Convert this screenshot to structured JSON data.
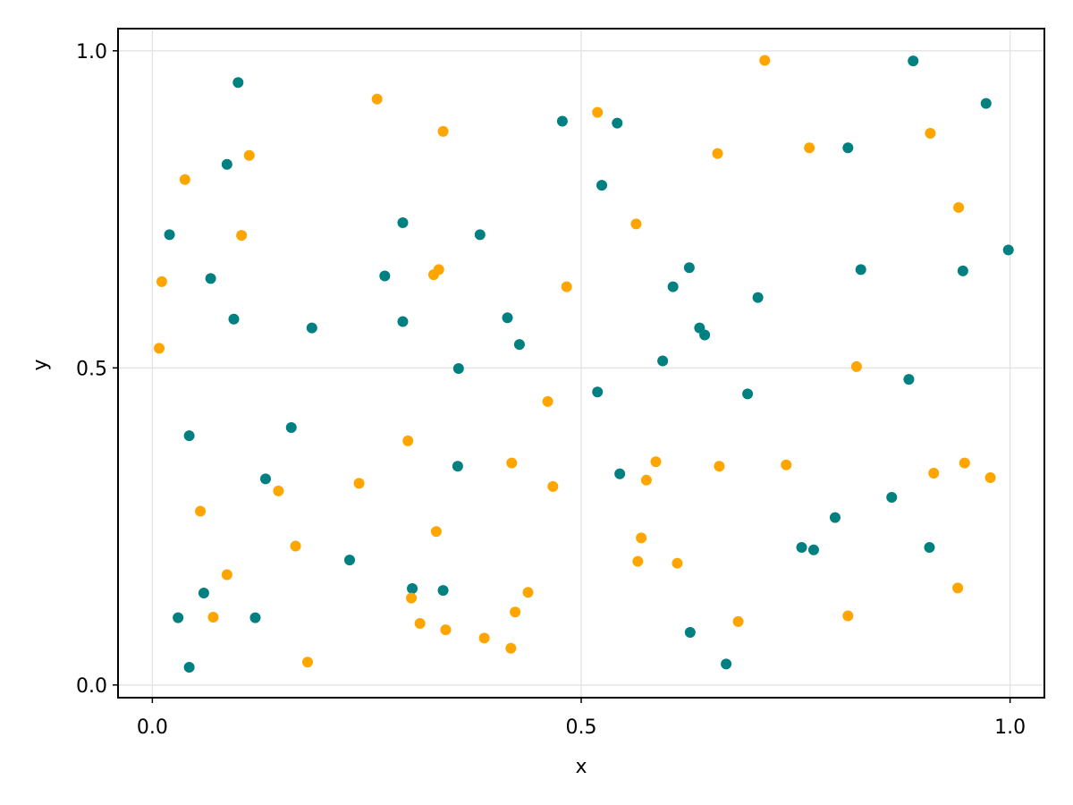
{
  "chart_data": {
    "type": "scatter",
    "title": "",
    "xlabel": "x",
    "ylabel": "y",
    "xlim": [
      -0.04,
      1.04
    ],
    "ylim": [
      -0.02,
      1.035
    ],
    "xticks": [
      "0.0",
      "0.5",
      "1.0"
    ],
    "yticks": [
      "0.0",
      "0.5",
      "1.0"
    ],
    "grid": true,
    "series": [
      {
        "color": "#008080",
        "points": [
          [
            0.02,
            0.71
          ],
          [
            0.03,
            0.106
          ],
          [
            0.043,
            0.393
          ],
          [
            0.043,
            0.028
          ],
          [
            0.06,
            0.145
          ],
          [
            0.068,
            0.641
          ],
          [
            0.087,
            0.821
          ],
          [
            0.095,
            0.577
          ],
          [
            0.1,
            0.95
          ],
          [
            0.12,
            0.106
          ],
          [
            0.132,
            0.325
          ],
          [
            0.162,
            0.406
          ],
          [
            0.186,
            0.563
          ],
          [
            0.23,
            0.197
          ],
          [
            0.271,
            0.645
          ],
          [
            0.292,
            0.729
          ],
          [
            0.292,
            0.573
          ],
          [
            0.303,
            0.152
          ],
          [
            0.339,
            0.149
          ],
          [
            0.356,
            0.345
          ],
          [
            0.357,
            0.499
          ],
          [
            0.382,
            0.71
          ],
          [
            0.414,
            0.579
          ],
          [
            0.428,
            0.537
          ],
          [
            0.478,
            0.889
          ],
          [
            0.519,
            0.462
          ],
          [
            0.524,
            0.788
          ],
          [
            0.542,
            0.886
          ],
          [
            0.545,
            0.333
          ],
          [
            0.595,
            0.511
          ],
          [
            0.607,
            0.628
          ],
          [
            0.626,
            0.658
          ],
          [
            0.627,
            0.083
          ],
          [
            0.638,
            0.563
          ],
          [
            0.644,
            0.552
          ],
          [
            0.669,
            0.033
          ],
          [
            0.694,
            0.459
          ],
          [
            0.706,
            0.611
          ],
          [
            0.757,
            0.217
          ],
          [
            0.771,
            0.213
          ],
          [
            0.796,
            0.264
          ],
          [
            0.811,
            0.847
          ],
          [
            0.826,
            0.655
          ],
          [
            0.862,
            0.296
          ],
          [
            0.882,
            0.482
          ],
          [
            0.887,
            0.984
          ],
          [
            0.906,
            0.217
          ],
          [
            0.945,
            0.653
          ],
          [
            0.972,
            0.917
          ],
          [
            0.998,
            0.686
          ]
        ]
      },
      {
        "color": "#ffa500",
        "points": [
          [
            0.008,
            0.531
          ],
          [
            0.011,
            0.636
          ],
          [
            0.038,
            0.797
          ],
          [
            0.056,
            0.274
          ],
          [
            0.071,
            0.107
          ],
          [
            0.087,
            0.174
          ],
          [
            0.104,
            0.709
          ],
          [
            0.113,
            0.835
          ],
          [
            0.147,
            0.306
          ],
          [
            0.167,
            0.219
          ],
          [
            0.181,
            0.036
          ],
          [
            0.241,
            0.318
          ],
          [
            0.262,
            0.924
          ],
          [
            0.298,
            0.385
          ],
          [
            0.302,
            0.137
          ],
          [
            0.312,
            0.097
          ],
          [
            0.328,
            0.647
          ],
          [
            0.331,
            0.242
          ],
          [
            0.334,
            0.655
          ],
          [
            0.339,
            0.873
          ],
          [
            0.342,
            0.087
          ],
          [
            0.387,
            0.074
          ],
          [
            0.418,
            0.058
          ],
          [
            0.419,
            0.35
          ],
          [
            0.423,
            0.115
          ],
          [
            0.438,
            0.146
          ],
          [
            0.461,
            0.447
          ],
          [
            0.467,
            0.313
          ],
          [
            0.483,
            0.628
          ],
          [
            0.519,
            0.903
          ],
          [
            0.564,
            0.727
          ],
          [
            0.566,
            0.195
          ],
          [
            0.57,
            0.232
          ],
          [
            0.576,
            0.323
          ],
          [
            0.587,
            0.352
          ],
          [
            0.612,
            0.192
          ],
          [
            0.659,
            0.838
          ],
          [
            0.661,
            0.345
          ],
          [
            0.683,
            0.1
          ],
          [
            0.714,
            0.985
          ],
          [
            0.739,
            0.347
          ],
          [
            0.766,
            0.847
          ],
          [
            0.811,
            0.109
          ],
          [
            0.821,
            0.502
          ],
          [
            0.907,
            0.87
          ],
          [
            0.911,
            0.334
          ],
          [
            0.939,
            0.153
          ],
          [
            0.94,
            0.753
          ],
          [
            0.947,
            0.35
          ],
          [
            0.977,
            0.327
          ]
        ]
      }
    ]
  }
}
